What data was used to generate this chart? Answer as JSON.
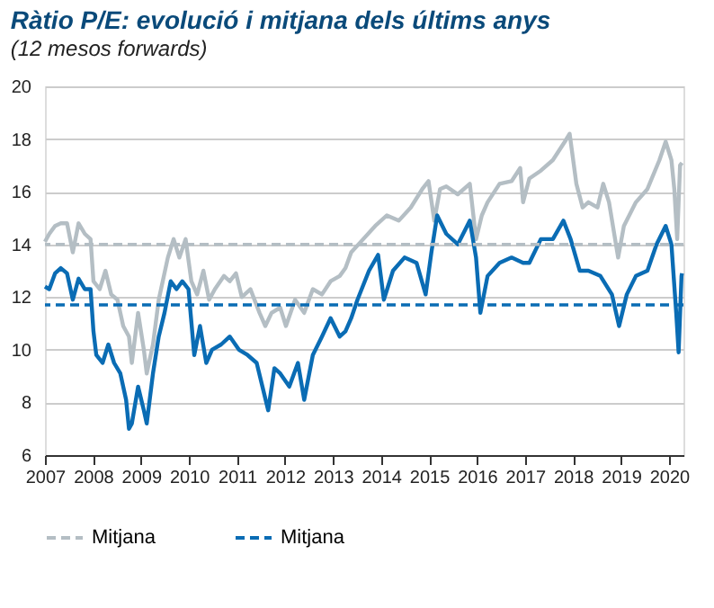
{
  "chart_data": {
    "type": "line",
    "title": "Ràtio P/E: evolució i mitjana dels últims anys",
    "subtitle": "(12 mesos forwards)",
    "xlim": [
      2007,
      2020.3
    ],
    "xticks": [
      2007,
      2008,
      2009,
      2010,
      2011,
      2012,
      2013,
      2014,
      2015,
      2016,
      2017,
      2018,
      2019,
      2020
    ],
    "ylim": [
      6,
      20
    ],
    "yticks": [
      6,
      8,
      10,
      12,
      14,
      16,
      18,
      20
    ],
    "grid": "y",
    "legend": "bottom",
    "line_style": "solid",
    "marker": "none",
    "series": [
      {
        "color": "#b4bec4",
        "x": [
          2007.0,
          2007.09,
          2007.21,
          2007.33,
          2007.46,
          2007.58,
          2007.7,
          2007.83,
          2007.95,
          2008.01,
          2008.14,
          2008.26,
          2008.38,
          2008.51,
          2008.63,
          2008.75,
          2008.81,
          2008.94,
          2009.06,
          2009.12,
          2009.25,
          2009.37,
          2009.56,
          2009.68,
          2009.8,
          2009.93,
          2010.05,
          2010.17,
          2010.3,
          2010.42,
          2010.54,
          2010.73,
          2010.85,
          2010.98,
          2011.1,
          2011.28,
          2011.47,
          2011.59,
          2011.72,
          2011.9,
          2012.02,
          2012.21,
          2012.4,
          2012.58,
          2012.77,
          2012.95,
          2013.14,
          2013.26,
          2013.38,
          2013.63,
          2013.88,
          2014.12,
          2014.37,
          2014.62,
          2014.86,
          2014.99,
          2015.11,
          2015.23,
          2015.36,
          2015.6,
          2015.85,
          2015.98,
          2016.1,
          2016.22,
          2016.47,
          2016.72,
          2016.9,
          2016.96,
          2017.09,
          2017.33,
          2017.58,
          2017.83,
          2017.93,
          2018.07,
          2018.2,
          2018.32,
          2018.51,
          2018.63,
          2018.75,
          2018.94,
          2019.06,
          2019.31,
          2019.55,
          2019.8,
          2019.93,
          2020.05,
          2020.11,
          2020.17,
          2020.23,
          2020.27
        ],
        "values": [
          14.1,
          14.4,
          14.7,
          14.8,
          14.8,
          13.7,
          14.8,
          14.4,
          14.2,
          12.6,
          12.3,
          13.0,
          12.1,
          11.9,
          10.9,
          10.5,
          9.5,
          11.4,
          10.0,
          9.1,
          10.2,
          11.9,
          13.5,
          14.2,
          13.5,
          14.2,
          12.6,
          12.1,
          13.0,
          11.9,
          12.3,
          12.8,
          12.6,
          12.9,
          12.0,
          12.3,
          11.4,
          10.9,
          11.4,
          11.6,
          10.9,
          11.9,
          11.4,
          12.3,
          12.1,
          12.6,
          12.8,
          13.1,
          13.7,
          14.2,
          14.7,
          15.1,
          14.9,
          15.4,
          16.1,
          16.4,
          14.9,
          16.1,
          16.2,
          15.9,
          16.3,
          14.2,
          15.1,
          15.6,
          16.3,
          16.4,
          16.9,
          15.6,
          16.5,
          16.8,
          17.2,
          17.9,
          18.2,
          16.3,
          15.4,
          15.6,
          15.4,
          16.3,
          15.6,
          13.5,
          14.7,
          15.6,
          16.1,
          17.2,
          17.9,
          17.2,
          16.1,
          14.2,
          17.0,
          17.1
        ]
      },
      {
        "color": "#0a6cb4",
        "x": [
          2007.0,
          2007.09,
          2007.21,
          2007.33,
          2007.46,
          2007.58,
          2007.7,
          2007.83,
          2007.95,
          2008.01,
          2008.07,
          2008.2,
          2008.32,
          2008.44,
          2008.57,
          2008.69,
          2008.75,
          2008.81,
          2008.94,
          2009.06,
          2009.12,
          2009.25,
          2009.37,
          2009.49,
          2009.62,
          2009.74,
          2009.86,
          2009.99,
          2010.11,
          2010.23,
          2010.36,
          2010.48,
          2010.67,
          2010.85,
          2011.04,
          2011.22,
          2011.41,
          2011.53,
          2011.65,
          2011.78,
          2011.9,
          2012.09,
          2012.27,
          2012.4,
          2012.58,
          2012.77,
          2012.95,
          2013.14,
          2013.26,
          2013.38,
          2013.51,
          2013.75,
          2013.94,
          2014.06,
          2014.25,
          2014.49,
          2014.74,
          2014.93,
          2015.05,
          2015.17,
          2015.36,
          2015.6,
          2015.85,
          2015.98,
          2016.07,
          2016.22,
          2016.47,
          2016.72,
          2016.96,
          2017.09,
          2017.33,
          2017.58,
          2017.8,
          2017.95,
          2018.14,
          2018.32,
          2018.57,
          2018.81,
          2018.96,
          2019.12,
          2019.31,
          2019.55,
          2019.74,
          2019.93,
          2020.05,
          2020.15,
          2020.2,
          2020.26,
          2020.27
        ],
        "values": [
          12.4,
          12.3,
          12.9,
          13.1,
          12.9,
          11.9,
          12.7,
          12.3,
          12.3,
          10.7,
          9.8,
          9.5,
          10.2,
          9.5,
          9.1,
          8.1,
          7.0,
          7.2,
          8.6,
          7.7,
          7.2,
          9.1,
          10.5,
          11.4,
          12.6,
          12.3,
          12.6,
          12.3,
          9.8,
          10.9,
          9.5,
          10.0,
          10.2,
          10.5,
          10.0,
          9.8,
          9.5,
          8.6,
          7.7,
          9.3,
          9.1,
          8.6,
          9.5,
          8.1,
          9.8,
          10.5,
          11.2,
          10.5,
          10.7,
          11.2,
          11.9,
          13.0,
          13.6,
          11.9,
          13.0,
          13.5,
          13.3,
          12.1,
          13.7,
          15.1,
          14.4,
          14.0,
          14.9,
          13.5,
          11.4,
          12.8,
          13.3,
          13.5,
          13.3,
          13.3,
          14.2,
          14.2,
          14.9,
          14.2,
          13.0,
          13.0,
          12.8,
          12.1,
          10.9,
          12.1,
          12.8,
          13.0,
          14.0,
          14.7,
          14.0,
          11.4,
          9.9,
          12.8,
          12.9
        ]
      }
    ],
    "ref_lines": [
      {
        "axis": "y",
        "value": 14.0,
        "label": "Mitjana",
        "color": "#b4bec4",
        "line_style": "dashed"
      },
      {
        "axis": "y",
        "value": 11.7,
        "label": "Mitjana",
        "color": "#0a6cb4",
        "line_style": "dashed"
      }
    ]
  }
}
